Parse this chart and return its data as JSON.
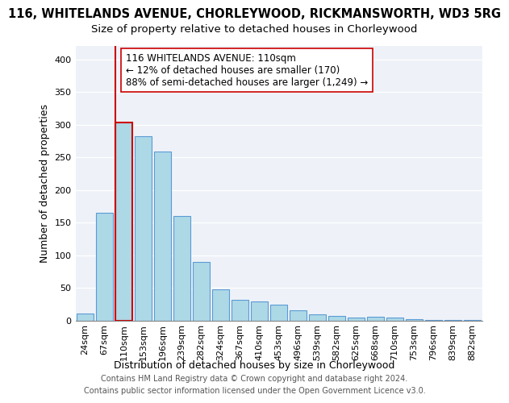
{
  "title": "116, WHITELANDS AVENUE, CHORLEYWOOD, RICKMANSWORTH, WD3 5RG",
  "subtitle": "Size of property relative to detached houses in Chorleywood",
  "xlabel": "Distribution of detached houses by size in Chorleywood",
  "ylabel": "Number of detached properties",
  "bar_labels": [
    "24sqm",
    "67sqm",
    "110sqm",
    "153sqm",
    "196sqm",
    "239sqm",
    "282sqm",
    "324sqm",
    "367sqm",
    "410sqm",
    "453sqm",
    "496sqm",
    "539sqm",
    "582sqm",
    "625sqm",
    "668sqm",
    "710sqm",
    "753sqm",
    "796sqm",
    "839sqm",
    "882sqm"
  ],
  "bar_values": [
    10,
    165,
    303,
    282,
    259,
    160,
    89,
    48,
    31,
    29,
    24,
    16,
    9,
    7,
    4,
    5,
    4,
    2,
    1,
    1,
    1
  ],
  "bar_color": "#add8e6",
  "bar_edge_color": "#5b9bd5",
  "highlight_index": 2,
  "highlight_edge_color": "#cc0000",
  "vline_color": "#cc0000",
  "annotation_line1": "116 WHITELANDS AVENUE: 110sqm",
  "annotation_line2": "← 12% of detached houses are smaller (170)",
  "annotation_line3": "88% of semi-detached houses are larger (1,249) →",
  "annotation_box_color": "#ffffff",
  "annotation_box_edge": "#cc0000",
  "ylim": [
    0,
    420
  ],
  "yticks": [
    0,
    50,
    100,
    150,
    200,
    250,
    300,
    350,
    400
  ],
  "footer_line1": "Contains HM Land Registry data © Crown copyright and database right 2024.",
  "footer_line2": "Contains public sector information licensed under the Open Government Licence v3.0.",
  "bg_color": "#eef2f8",
  "fig_bg_color": "#ffffff",
  "title_fontsize": 10.5,
  "subtitle_fontsize": 9.5,
  "xlabel_fontsize": 9,
  "ylabel_fontsize": 9,
  "tick_fontsize": 8,
  "annotation_fontsize": 8.5,
  "footer_fontsize": 7
}
